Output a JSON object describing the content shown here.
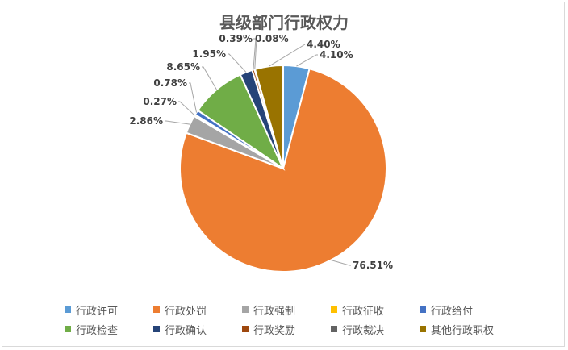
{
  "chart_data": {
    "type": "pie",
    "title": "县级部门行政权力",
    "categories": [
      "行政许可",
      "行政处罚",
      "行政强制",
      "行政征收",
      "行政给付",
      "行政检查",
      "行政确认",
      "行政奖励",
      "行政裁决",
      "其他行政职权"
    ],
    "values": [
      4.1,
      76.51,
      2.86,
      0.27,
      0.78,
      8.65,
      1.95,
      0.39,
      0.08,
      4.4
    ],
    "data_labels": [
      "4.10%",
      "76.51%",
      "2.86%",
      "0.27%",
      "0.78%",
      "8.65%",
      "1.95%",
      "0.39%",
      "0.08%",
      "4.40%"
    ],
    "colors": [
      "#5b9bd5",
      "#ed7d31",
      "#a5a5a5",
      "#ffc000",
      "#4472c4",
      "#70ad47",
      "#264478",
      "#9e480e",
      "#636363",
      "#997300"
    ],
    "legend_position": "bottom"
  }
}
